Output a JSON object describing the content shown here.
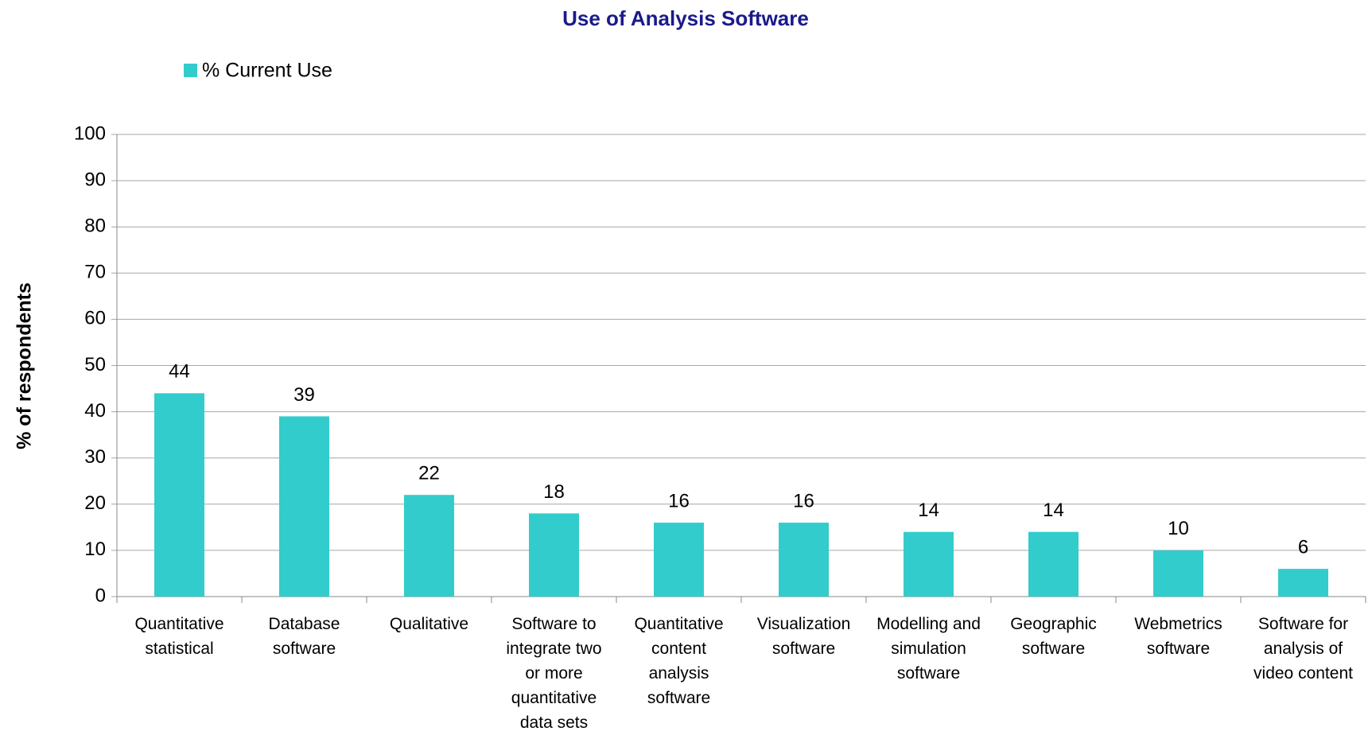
{
  "chart_data": {
    "type": "bar",
    "title": "Use of Analysis Software",
    "y_label": "% of respondents",
    "categories": [
      "Quantitative statistical",
      "Database software",
      "Qualitative",
      "Software to integrate two or more quantitative data sets",
      "Quantitative content analysis software",
      "Visualization software",
      "Modelling and simulation software",
      "Geographic software",
      "Webmetrics software",
      "Software for analysis of video content"
    ],
    "series": [
      {
        "name": "% Current Use",
        "color": "#33cccc",
        "values": [
          44,
          39,
          22,
          18,
          16,
          16,
          14,
          14,
          10,
          6
        ]
      }
    ],
    "ylim": [
      0,
      100
    ],
    "yticks": [
      0,
      10,
      20,
      30,
      40,
      50,
      60,
      70,
      80,
      90,
      100
    ],
    "grid": true,
    "legend": "top-left"
  }
}
